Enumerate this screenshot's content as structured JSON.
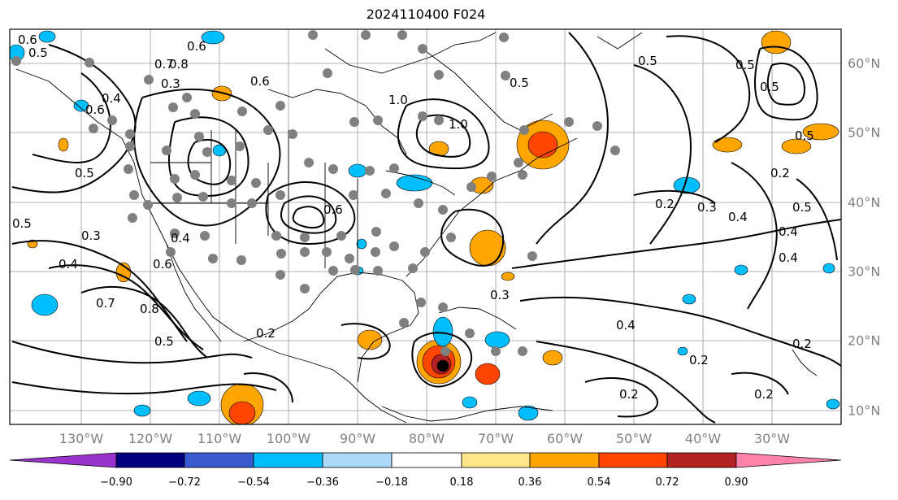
{
  "title": "2024110400 F024",
  "lon_labels": [
    "130°W",
    "120°W",
    "110°W",
    "100°W",
    "90°W",
    "80°W",
    "70°W",
    "60°W",
    "50°W",
    "40°W",
    "30°W"
  ],
  "lat_labels": [
    "60°N",
    "50°N",
    "40°N",
    "30°N",
    "20°N",
    "10°N"
  ],
  "colorbar": {
    "ticks": [
      "−0.90",
      "−0.72",
      "−0.54",
      "−0.36",
      "−0.18",
      "0.18",
      "0.36",
      "0.54",
      "0.72",
      "0.90"
    ],
    "colors": [
      "#9933cc",
      "#000080",
      "#3a5bd0",
      "#00bfff",
      "#add8f7",
      "#ffffff",
      "#ffe68a",
      "#ffa500",
      "#ff4500",
      "#b22222",
      "#ff82ab"
    ]
  },
  "contour_labels": [
    "0.6",
    "0.5",
    "0.4",
    "0.6",
    "0.7",
    "0.8",
    "0.6",
    "1.0",
    "1.0",
    "0.5",
    "0.5",
    "0.5",
    "0.6",
    "0.5",
    "0.5",
    "0.4",
    "0.3",
    "0.4",
    "0.6",
    "0.5",
    "0.4",
    "0.7",
    "0.8",
    "0.5",
    "0.2",
    "0.2",
    "0.3",
    "0.4",
    "0.3",
    "0.4",
    "0.5",
    "0.4",
    "0.2",
    "0.2",
    "0.2",
    "0.2",
    "0.3",
    "0.2",
    "0.6",
    "0.5"
  ]
}
